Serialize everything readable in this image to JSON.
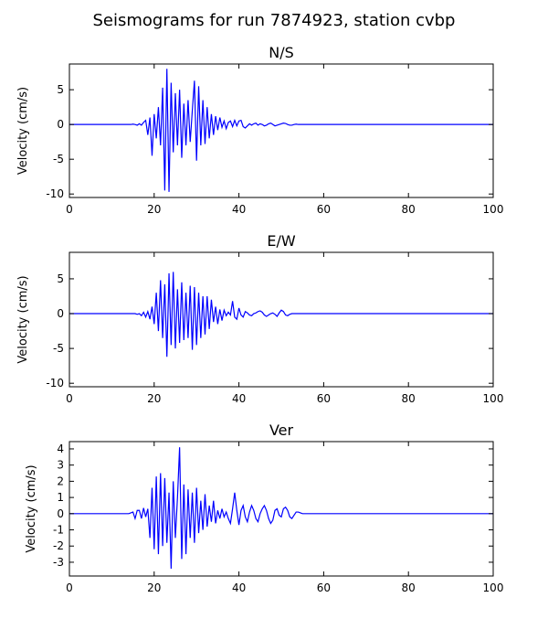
{
  "title": "Seismograms for run 7874923, station cvbp",
  "chart_data": [
    {
      "type": "line",
      "title": "N/S",
      "y_label": "Velocity (cm/s)",
      "x": [
        0,
        10,
        14,
        14.5,
        15,
        15.5,
        16,
        16.5,
        17,
        17.5,
        18,
        18.5,
        19,
        19.5,
        20,
        20.5,
        21,
        21.5,
        22,
        22.5,
        23,
        23.5,
        24,
        24.5,
        25,
        25.5,
        26,
        26.5,
        27,
        27.5,
        28,
        28.5,
        29,
        29.5,
        30,
        30.5,
        31,
        31.5,
        32,
        32.5,
        33,
        33.5,
        34,
        34.5,
        35,
        35.5,
        36,
        36.5,
        37,
        37.5,
        38,
        38.5,
        39,
        39.5,
        40,
        40.5,
        41,
        41.5,
        42,
        42.5,
        43,
        43.5,
        44,
        44.5,
        45,
        45.5,
        46,
        46.5,
        47,
        47.5,
        48,
        48.5,
        49,
        49.5,
        50,
        50.5,
        51,
        51.5,
        52,
        52.5,
        53,
        53.5,
        54,
        54.5,
        55,
        55.5,
        56,
        56.5,
        57,
        57.5,
        58,
        60,
        100
      ],
      "series": [
        {
          "color": "#0000ff",
          "values": [
            0,
            0,
            0,
            0,
            0.05,
            0,
            -0.1,
            0.1,
            -0.1,
            0.3,
            0.6,
            -1.5,
            1,
            -4.5,
            1.5,
            -2,
            2.5,
            -3,
            5.3,
            -9.5,
            8,
            -9.7,
            6,
            -4,
            4.5,
            -3,
            5,
            -4.8,
            3,
            -3,
            3.5,
            -2.5,
            2,
            6.3,
            -5.2,
            5.5,
            -3,
            3.5,
            -2.8,
            2.5,
            -2,
            1.5,
            -1.5,
            1.2,
            -0.8,
            1,
            -0.4,
            0.5,
            -0.6,
            0.3,
            0.5,
            -0.3,
            0.6,
            -0.2,
            0.5,
            0.6,
            -0.3,
            -0.5,
            -0.2,
            0.1,
            -0.1,
            0.1,
            0.2,
            -0.1,
            0.1,
            0,
            -0.2,
            -0.1,
            0.1,
            0.2,
            0,
            -0.2,
            -0.1,
            0,
            0.1,
            0.2,
            0.15,
            0,
            -0.1,
            -0.1,
            0,
            0.05,
            0,
            0,
            0,
            0,
            0,
            0,
            0,
            0,
            0,
            0,
            0
          ]
        }
      ],
      "xlim": [
        0,
        100
      ],
      "xticks": [
        0,
        20,
        40,
        60,
        80,
        100
      ],
      "ylim": [
        -10.5,
        8.7
      ],
      "yticks": [
        -10,
        -5,
        0,
        5
      ]
    },
    {
      "type": "line",
      "title": "E/W",
      "y_label": "Velocity (cm/s)",
      "x": [
        0,
        10,
        14,
        14.5,
        15,
        15.5,
        16,
        16.5,
        17,
        17.5,
        18,
        18.5,
        19,
        19.5,
        20,
        20.5,
        21,
        21.5,
        22,
        22.5,
        23,
        23.5,
        24,
        24.5,
        25,
        25.5,
        26,
        26.5,
        27,
        27.5,
        28,
        28.5,
        29,
        29.5,
        30,
        30.5,
        31,
        31.5,
        32,
        32.5,
        33,
        33.5,
        34,
        34.5,
        35,
        35.5,
        36,
        36.5,
        37,
        37.5,
        38,
        38.5,
        39,
        39.5,
        40,
        40.5,
        41,
        41.5,
        42,
        42.5,
        43,
        43.5,
        44,
        44.5,
        45,
        45.5,
        46,
        46.5,
        47,
        47.5,
        48,
        48.5,
        49,
        49.5,
        50,
        50.5,
        51,
        51.5,
        52,
        52.5,
        53,
        53.5,
        54,
        54.5,
        55,
        55.5,
        56,
        56.5,
        57,
        57.5,
        58,
        60,
        100
      ],
      "series": [
        {
          "color": "#0000ff",
          "values": [
            0,
            0,
            0,
            0,
            0,
            0,
            -0.1,
            0,
            -0.3,
            0.2,
            -0.5,
            0.3,
            -0.8,
            1,
            -1.5,
            3,
            -2.5,
            4.8,
            -3.5,
            4.2,
            -6.2,
            5.8,
            -4.5,
            6,
            -5,
            3.5,
            -4.2,
            4.5,
            -3.8,
            3,
            -3.5,
            4,
            -5.2,
            3.8,
            -4.5,
            3,
            -3.5,
            2.5,
            -3,
            2.5,
            -2.2,
            2,
            -1.2,
            1,
            -1.5,
            0.6,
            -1,
            0.5,
            -0.3,
            0.2,
            -0.2,
            1.8,
            -0.5,
            -0.8,
            0.8,
            -0.2,
            -0.5,
            0.3,
            0.1,
            -0.2,
            -0.3,
            0,
            0.1,
            0.3,
            0.4,
            0.2,
            -0.2,
            -0.4,
            -0.2,
            0,
            0.1,
            -0.1,
            -0.4,
            0.1,
            0.5,
            0.3,
            -0.2,
            -0.3,
            -0.1,
            0,
            0,
            0,
            0,
            0,
            0,
            0,
            0,
            0,
            0,
            0,
            0,
            0,
            0
          ]
        }
      ],
      "xlim": [
        0,
        100
      ],
      "xticks": [
        0,
        20,
        40,
        60,
        80,
        100
      ],
      "ylim": [
        -10.5,
        8.8
      ],
      "yticks": [
        -10,
        -5,
        0,
        5
      ]
    },
    {
      "type": "line",
      "title": "Ver",
      "y_label": "Velocity (cm/s)",
      "x": [
        0,
        10,
        14,
        14.5,
        15,
        15.5,
        16,
        16.5,
        17,
        17.5,
        18,
        18.5,
        19,
        19.5,
        20,
        20.5,
        21,
        21.5,
        22,
        22.5,
        23,
        23.5,
        24,
        24.5,
        25,
        25.5,
        26,
        26.5,
        27,
        27.5,
        28,
        28.5,
        29,
        29.5,
        30,
        30.5,
        31,
        31.5,
        32,
        32.5,
        33,
        33.5,
        34,
        34.5,
        35,
        35.5,
        36,
        36.5,
        37,
        37.5,
        38,
        38.5,
        39,
        39.5,
        40,
        40.5,
        41,
        41.5,
        42,
        42.5,
        43,
        43.5,
        44,
        44.5,
        45,
        45.5,
        46,
        46.5,
        47,
        47.5,
        48,
        48.5,
        49,
        49.5,
        50,
        50.5,
        51,
        51.5,
        52,
        52.5,
        53,
        53.5,
        54,
        54.5,
        55,
        55.5,
        56,
        56.5,
        57,
        57.5,
        58,
        60,
        100
      ],
      "series": [
        {
          "color": "#0000ff",
          "values": [
            0,
            0,
            0,
            0.05,
            0.1,
            -0.3,
            0.2,
            0.2,
            -0.3,
            0.35,
            -0.2,
            0.3,
            -1.5,
            1.6,
            -2.2,
            2.3,
            -2.5,
            2.5,
            -2,
            2.2,
            -1.8,
            1.3,
            -3.4,
            2,
            -1.5,
            1,
            4.1,
            -2.8,
            1.8,
            -2.5,
            1.5,
            -1.5,
            1.3,
            -1.8,
            1.6,
            -1.2,
            0.8,
            -1,
            1.2,
            -0.8,
            0.5,
            -0.5,
            0.8,
            -0.6,
            0.2,
            -0.3,
            0.3,
            -0.2,
            0.1,
            -0.3,
            -0.6,
            0.3,
            1.3,
            0.2,
            -0.7,
            0.2,
            0.5,
            -0.2,
            -0.5,
            0.1,
            0.5,
            0.2,
            -0.3,
            -0.5,
            0,
            0.3,
            0.5,
            0.2,
            -0.3,
            -0.6,
            -0.4,
            0.2,
            0.3,
            -0.1,
            -0.2,
            0.3,
            0.4,
            0.2,
            -0.2,
            -0.3,
            -0.1,
            0.1,
            0.1,
            0.05,
            0,
            0,
            0,
            0,
            0,
            0,
            0,
            0,
            0
          ]
        }
      ],
      "xlim": [
        0,
        100
      ],
      "xticks": [
        0,
        20,
        40,
        60,
        80,
        100
      ],
      "ylim": [
        -3.85,
        4.45
      ],
      "yticks": [
        -3,
        -2,
        -1,
        0,
        1,
        2,
        3,
        4
      ]
    }
  ]
}
